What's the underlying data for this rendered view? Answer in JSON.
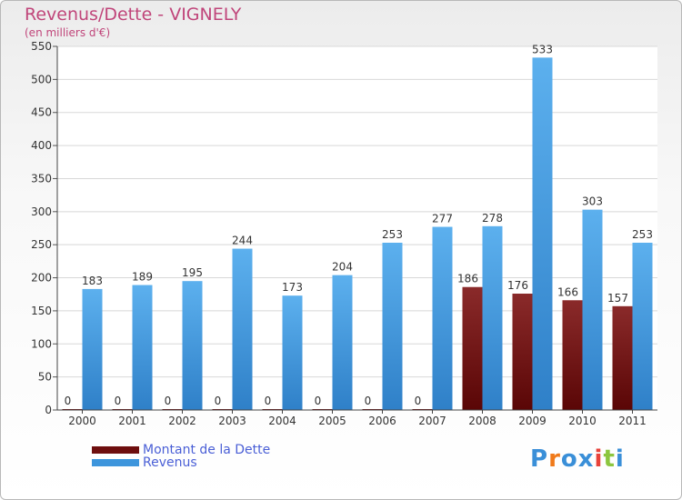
{
  "title": "Revenus/Dette - VIGNELY",
  "subtitle": "(en milliers d'€)",
  "logo_text": "Proxiti",
  "colors": {
    "title": "#c0457a",
    "dette": "#6e0e0e",
    "revenus": "#3d95dc",
    "legend_text": "#4a5fd6",
    "logo": [
      "#3a8fd8",
      "#f07a1a",
      "#3a8fd8",
      "#3a8fd8",
      "#e8423a",
      "#8cc63f",
      "#3a8fd8"
    ]
  },
  "chart_data": {
    "type": "bar",
    "categories": [
      "2000",
      "2001",
      "2002",
      "2003",
      "2004",
      "2005",
      "2006",
      "2007",
      "2008",
      "2009",
      "2010",
      "2011"
    ],
    "series": [
      {
        "name": "Montant de la Dette",
        "values": [
          0,
          0,
          0,
          0,
          0,
          0,
          0,
          0,
          186,
          176,
          166,
          157
        ]
      },
      {
        "name": "Revenus",
        "values": [
          183,
          189,
          195,
          244,
          173,
          204,
          253,
          277,
          278,
          533,
          303,
          253
        ]
      }
    ],
    "yticks": [
      0,
      50,
      100,
      150,
      200,
      250,
      300,
      350,
      400,
      450,
      500,
      550
    ],
    "ylim": [
      0,
      550
    ],
    "grid": true
  }
}
